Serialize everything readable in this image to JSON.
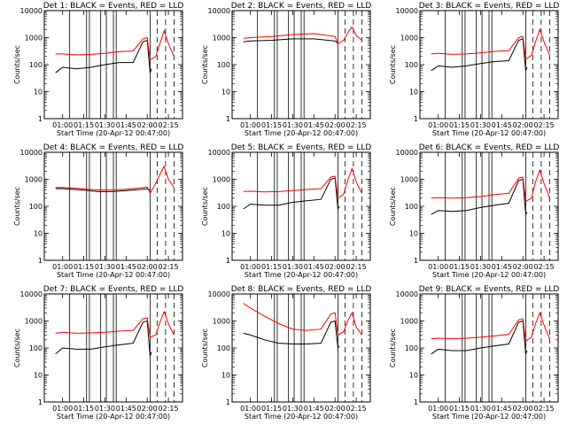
{
  "figure": {
    "x_label": "Start Time (20-Apr-12 00:47:00)",
    "y_label": "Counts/sec",
    "x_ticks": [
      "01:00",
      "01:15",
      "01:30",
      "01:45",
      "02:00",
      "02:15"
    ],
    "y_ticks": [
      "1",
      "10",
      "100",
      "1000",
      "10000"
    ],
    "colors": {
      "events": "#000000",
      "lld": "#ff0000"
    }
  },
  "chart_data": [
    {
      "type": "line",
      "title": "Det 1: BLACK = Events, RED = LLD",
      "xlabel": "Start Time (20-Apr-12 00:47:00)",
      "ylabel": "Counts/sec",
      "y_scale": "log",
      "ylim": [
        1,
        10000
      ],
      "xlim": [
        "00:47",
        "02:25"
      ],
      "x_ticks": [
        "01:00",
        "01:15",
        "01:30",
        "01:45",
        "02:00",
        "02:15"
      ],
      "vlines_solid": [
        "01:05",
        "01:17",
        "01:19",
        "01:27",
        "01:31",
        "01:36",
        "01:38",
        "02:02"
      ],
      "vlines_dashed": [
        "02:07",
        "02:13",
        "02:19"
      ],
      "series": [
        {
          "name": "Events",
          "color": "#000000",
          "x": [
            "00:55",
            "01:00",
            "01:10",
            "01:20",
            "01:30",
            "01:40",
            "01:50",
            "01:57",
            "02:00",
            "02:02",
            "02:03"
          ],
          "y": [
            50,
            80,
            70,
            80,
            100,
            120,
            120,
            700,
            800,
            50,
            70
          ]
        },
        {
          "name": "LLD",
          "color": "#ff0000",
          "x": [
            "00:55",
            "01:00",
            "01:10",
            "01:20",
            "01:30",
            "01:40",
            "01:50",
            "01:57",
            "02:00",
            "02:02",
            "02:06",
            "02:09",
            "02:12",
            "02:15",
            "02:19"
          ],
          "y": [
            250,
            250,
            230,
            240,
            260,
            300,
            320,
            900,
            1000,
            150,
            200,
            600,
            1800,
            600,
            200
          ]
        }
      ]
    },
    {
      "type": "line",
      "title": "Det 2: BLACK = Events, RED = LLD",
      "xlabel": "Start Time (20-Apr-12 00:47:00)",
      "ylabel": "Counts/sec",
      "y_scale": "log",
      "ylim": [
        1,
        10000
      ],
      "xlim": [
        "00:47",
        "02:25"
      ],
      "x_ticks": [
        "01:00",
        "01:15",
        "01:30",
        "01:45",
        "02:00",
        "02:15"
      ],
      "vlines_solid": [
        "01:05",
        "01:17",
        "01:19",
        "01:27",
        "01:31",
        "01:36",
        "01:38",
        "02:02"
      ],
      "vlines_dashed": [
        "02:07",
        "02:13",
        "02:19"
      ],
      "series": [
        {
          "name": "Events",
          "color": "#000000",
          "x": [
            "00:55",
            "01:00",
            "01:15",
            "01:30",
            "01:45",
            "01:55",
            "02:00",
            "02:02"
          ],
          "y": [
            700,
            750,
            800,
            900,
            900,
            800,
            750,
            600
          ]
        },
        {
          "name": "LLD",
          "color": "#ff0000",
          "x": [
            "00:55",
            "01:00",
            "01:15",
            "01:30",
            "01:45",
            "01:55",
            "02:00",
            "02:02",
            "02:06",
            "02:09",
            "02:12",
            "02:15",
            "02:19"
          ],
          "y": [
            950,
            1000,
            1100,
            1300,
            1400,
            1200,
            1100,
            600,
            800,
            1500,
            2500,
            1200,
            800
          ]
        }
      ]
    },
    {
      "type": "line",
      "title": "Det 3: BLACK = Events, RED = LLD",
      "xlabel": "Start Time (20-Apr-12 00:47:00)",
      "ylabel": "Counts/sec",
      "y_scale": "log",
      "ylim": [
        1,
        10000
      ],
      "xlim": [
        "00:47",
        "02:25"
      ],
      "x_ticks": [
        "01:00",
        "01:15",
        "01:30",
        "01:45",
        "02:00",
        "02:15"
      ],
      "vlines_solid": [
        "01:05",
        "01:17",
        "01:19",
        "01:27",
        "01:31",
        "01:36",
        "01:38",
        "02:02"
      ],
      "vlines_dashed": [
        "02:07",
        "02:13",
        "02:19"
      ],
      "series": [
        {
          "name": "Events",
          "color": "#000000",
          "x": [
            "00:55",
            "01:00",
            "01:10",
            "01:20",
            "01:30",
            "01:40",
            "01:50",
            "01:57",
            "02:00",
            "02:02",
            "02:03"
          ],
          "y": [
            60,
            90,
            80,
            90,
            110,
            130,
            140,
            800,
            900,
            60,
            80
          ]
        },
        {
          "name": "LLD",
          "color": "#ff0000",
          "x": [
            "00:55",
            "01:00",
            "01:10",
            "01:20",
            "01:30",
            "01:40",
            "01:50",
            "01:57",
            "02:00",
            "02:02",
            "02:06",
            "02:09",
            "02:12",
            "02:15",
            "02:19"
          ],
          "y": [
            250,
            260,
            240,
            250,
            270,
            310,
            330,
            1000,
            1100,
            160,
            220,
            700,
            2000,
            700,
            220
          ]
        }
      ]
    },
    {
      "type": "line",
      "title": "Det 4: BLACK = Events, RED = LLD",
      "xlabel": "Start Time (20-Apr-12 00:47:00)",
      "ylabel": "Counts/sec",
      "y_scale": "log",
      "ylim": [
        1,
        10000
      ],
      "xlim": [
        "00:47",
        "02:25"
      ],
      "x_ticks": [
        "01:00",
        "01:15",
        "01:30",
        "01:45",
        "02:00",
        "02:15"
      ],
      "vlines_solid": [
        "01:05",
        "01:17",
        "01:19",
        "01:27",
        "01:31",
        "01:36",
        "01:38",
        "02:02"
      ],
      "vlines_dashed": [
        "02:07",
        "02:13",
        "02:19"
      ],
      "series": [
        {
          "name": "Events",
          "color": "#000000",
          "x": [
            "00:55",
            "01:00",
            "01:15",
            "01:25",
            "01:35",
            "01:45",
            "01:55",
            "02:00",
            "02:02"
          ],
          "y": [
            450,
            450,
            400,
            350,
            350,
            380,
            420,
            450,
            400
          ]
        },
        {
          "name": "LLD",
          "color": "#ff0000",
          "x": [
            "00:55",
            "01:00",
            "01:15",
            "01:25",
            "01:35",
            "01:45",
            "01:55",
            "02:00",
            "02:02",
            "02:06",
            "02:09",
            "02:12",
            "02:15",
            "02:19"
          ],
          "y": [
            500,
            500,
            450,
            400,
            400,
            430,
            480,
            520,
            300,
            700,
            1500,
            3000,
            1000,
            500
          ]
        }
      ]
    },
    {
      "type": "line",
      "title": "Det 5: BLACK = Events, RED = LLD",
      "xlabel": "Start Time (20-Apr-12 00:47:00)",
      "ylabel": "Counts/sec",
      "y_scale": "log",
      "ylim": [
        1,
        10000
      ],
      "xlim": [
        "00:47",
        "02:25"
      ],
      "x_ticks": [
        "01:00",
        "01:15",
        "01:30",
        "01:45",
        "02:00",
        "02:15"
      ],
      "vlines_solid": [
        "01:05",
        "01:17",
        "01:19",
        "01:27",
        "01:31",
        "01:36",
        "01:38",
        "02:02"
      ],
      "vlines_dashed": [
        "02:07",
        "02:13",
        "02:19"
      ],
      "series": [
        {
          "name": "Events",
          "color": "#000000",
          "x": [
            "00:55",
            "01:00",
            "01:10",
            "01:20",
            "01:30",
            "01:40",
            "01:50",
            "01:57",
            "02:00",
            "02:02",
            "02:03"
          ],
          "y": [
            80,
            120,
            110,
            110,
            140,
            160,
            180,
            1000,
            1100,
            80,
            100
          ]
        },
        {
          "name": "LLD",
          "color": "#ff0000",
          "x": [
            "00:55",
            "01:00",
            "01:10",
            "01:20",
            "01:30",
            "01:40",
            "01:50",
            "01:57",
            "02:00",
            "02:02",
            "02:06",
            "02:09",
            "02:12",
            "02:15",
            "02:19"
          ],
          "y": [
            350,
            360,
            340,
            350,
            380,
            420,
            450,
            1200,
            1300,
            200,
            280,
            900,
            2500,
            800,
            300
          ]
        }
      ]
    },
    {
      "type": "line",
      "title": "Det 6: BLACK = Events, RED = LLD",
      "xlabel": "Start Time (20-Apr-12 00:47:00)",
      "ylabel": "Counts/sec",
      "y_scale": "log",
      "ylim": [
        1,
        10000
      ],
      "xlim": [
        "00:47",
        "02:25"
      ],
      "x_ticks": [
        "01:00",
        "01:15",
        "01:30",
        "01:45",
        "02:00",
        "02:15"
      ],
      "vlines_solid": [
        "01:05",
        "01:17",
        "01:19",
        "01:27",
        "01:31",
        "01:36",
        "01:38",
        "02:02"
      ],
      "vlines_dashed": [
        "02:07",
        "02:13",
        "02:19"
      ],
      "series": [
        {
          "name": "Events",
          "color": "#000000",
          "x": [
            "00:55",
            "01:00",
            "01:10",
            "01:20",
            "01:30",
            "01:40",
            "01:50",
            "01:57",
            "02:00",
            "02:02",
            "02:03"
          ],
          "y": [
            50,
            70,
            65,
            70,
            90,
            110,
            130,
            900,
            1000,
            50,
            60
          ]
        },
        {
          "name": "LLD",
          "color": "#ff0000",
          "x": [
            "00:55",
            "01:00",
            "01:10",
            "01:20",
            "01:30",
            "01:40",
            "01:50",
            "01:57",
            "02:00",
            "02:02",
            "02:06",
            "02:09",
            "02:12",
            "02:15",
            "02:19"
          ],
          "y": [
            200,
            210,
            200,
            210,
            230,
            270,
            300,
            1100,
            1200,
            150,
            200,
            800,
            2200,
            700,
            200
          ]
        }
      ]
    },
    {
      "type": "line",
      "title": "Det 7: BLACK = Events, RED = LLD",
      "xlabel": "Start Time (20-Apr-12 00:47:00)",
      "ylabel": "Counts/sec",
      "y_scale": "log",
      "ylim": [
        1,
        10000
      ],
      "xlim": [
        "00:47",
        "02:25"
      ],
      "x_ticks": [
        "01:00",
        "01:15",
        "01:30",
        "01:45",
        "02:00",
        "02:15"
      ],
      "vlines_solid": [
        "01:05",
        "01:17",
        "01:19",
        "01:27",
        "01:31",
        "01:36",
        "01:38",
        "02:02"
      ],
      "vlines_dashed": [
        "02:07",
        "02:13",
        "02:19"
      ],
      "series": [
        {
          "name": "Events",
          "color": "#000000",
          "x": [
            "00:55",
            "01:00",
            "01:10",
            "01:20",
            "01:30",
            "01:40",
            "01:50",
            "01:57",
            "02:00",
            "02:02",
            "02:03"
          ],
          "y": [
            60,
            100,
            90,
            90,
            110,
            130,
            150,
            900,
            1000,
            50,
            70
          ]
        },
        {
          "name": "LLD",
          "color": "#ff0000",
          "x": [
            "00:55",
            "01:00",
            "01:10",
            "01:20",
            "01:30",
            "01:40",
            "01:50",
            "01:57",
            "02:00",
            "02:02",
            "02:06",
            "02:09",
            "02:12",
            "02:15",
            "02:19"
          ],
          "y": [
            350,
            380,
            350,
            360,
            380,
            420,
            450,
            1200,
            1300,
            250,
            300,
            900,
            2200,
            800,
            300
          ]
        }
      ]
    },
    {
      "type": "line",
      "title": "Det 8: BLACK = Events, RED = LLD",
      "xlabel": "Start Time (20-Apr-12 00:47:00)",
      "ylabel": "Counts/sec",
      "y_scale": "log",
      "ylim": [
        1,
        10000
      ],
      "xlim": [
        "00:47",
        "02:25"
      ],
      "x_ticks": [
        "01:00",
        "01:15",
        "01:30",
        "01:45",
        "02:00",
        "02:15"
      ],
      "vlines_solid": [
        "01:05",
        "01:17",
        "01:19",
        "01:27",
        "01:31",
        "01:36",
        "01:38",
        "02:02"
      ],
      "vlines_dashed": [
        "02:07",
        "02:13",
        "02:19"
      ],
      "series": [
        {
          "name": "Events",
          "color": "#000000",
          "x": [
            "00:55",
            "01:00",
            "01:10",
            "01:20",
            "01:30",
            "01:40",
            "01:50",
            "01:57",
            "02:00",
            "02:02",
            "02:03"
          ],
          "y": [
            350,
            300,
            200,
            150,
            140,
            140,
            150,
            900,
            1000,
            100,
            120
          ]
        },
        {
          "name": "LLD",
          "color": "#ff0000",
          "x": [
            "00:55",
            "01:00",
            "01:10",
            "01:20",
            "01:30",
            "01:40",
            "01:50",
            "01:57",
            "02:00",
            "02:02",
            "02:06",
            "02:09",
            "02:12",
            "02:15",
            "02:19"
          ],
          "y": [
            4500,
            3000,
            1500,
            800,
            500,
            450,
            500,
            1800,
            2000,
            300,
            400,
            1000,
            2000,
            600,
            300
          ]
        }
      ]
    },
    {
      "type": "line",
      "title": "Det 9: BLACK = Events, RED = LLD",
      "xlabel": "Start Time (20-Apr-12 00:47:00)",
      "ylabel": "Counts/sec",
      "y_scale": "log",
      "ylim": [
        1,
        10000
      ],
      "xlim": [
        "00:47",
        "02:25"
      ],
      "x_ticks": [
        "01:00",
        "01:15",
        "01:30",
        "01:45",
        "02:00",
        "02:15"
      ],
      "vlines_solid": [
        "01:05",
        "01:17",
        "01:19",
        "01:27",
        "01:31",
        "01:36",
        "01:38",
        "02:02"
      ],
      "vlines_dashed": [
        "02:07",
        "02:13",
        "02:19"
      ],
      "series": [
        {
          "name": "Events",
          "color": "#000000",
          "x": [
            "00:55",
            "01:00",
            "01:10",
            "01:20",
            "01:30",
            "01:40",
            "01:50",
            "01:57",
            "02:00",
            "02:02",
            "02:03"
          ],
          "y": [
            60,
            90,
            80,
            80,
            100,
            120,
            140,
            900,
            1000,
            60,
            80
          ]
        },
        {
          "name": "LLD",
          "color": "#ff0000",
          "x": [
            "00:55",
            "01:00",
            "01:10",
            "01:20",
            "01:30",
            "01:40",
            "01:50",
            "01:57",
            "02:00",
            "02:02",
            "02:06",
            "02:09",
            "02:12",
            "02:15",
            "02:19"
          ],
          "y": [
            220,
            230,
            220,
            230,
            250,
            280,
            320,
            1100,
            1200,
            180,
            250,
            800,
            2000,
            700,
            220
          ]
        }
      ]
    }
  ]
}
